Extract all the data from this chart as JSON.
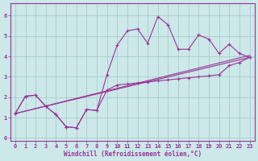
{
  "background_color": "#cce8e8",
  "grid_color": "#aacccc",
  "line_color": "#993399",
  "marker": "+",
  "markersize": 3.5,
  "linewidth": 0.8,
  "xlabel": "Windchill (Refroidissement éolien,°C)",
  "xlabel_fontsize": 5.5,
  "tick_color": "#993399",
  "tick_fontsize": 5.0,
  "xlim": [
    -0.5,
    23.5
  ],
  "ylim": [
    -0.15,
    6.6
  ],
  "xticks": [
    0,
    1,
    2,
    3,
    4,
    5,
    6,
    7,
    8,
    9,
    10,
    11,
    12,
    13,
    14,
    15,
    16,
    17,
    18,
    19,
    20,
    21,
    22,
    23
  ],
  "yticks": [
    0,
    1,
    2,
    3,
    4,
    5,
    6
  ],
  "line1_x": [
    0,
    1,
    2,
    3,
    4,
    5,
    6,
    7,
    8,
    9,
    10,
    11,
    12,
    13,
    14,
    15,
    16,
    17,
    18,
    19,
    20,
    21,
    22,
    23
  ],
  "line1_y": [
    1.2,
    2.05,
    2.1,
    1.55,
    1.15,
    0.55,
    0.5,
    1.4,
    1.35,
    3.1,
    4.55,
    5.25,
    5.35,
    4.65,
    5.95,
    5.55,
    4.35,
    4.35,
    5.05,
    4.85,
    4.15,
    4.6,
    4.15,
    3.95
  ],
  "line2_x": [
    0,
    1,
    2,
    3,
    4,
    5,
    6,
    7,
    8,
    9,
    10,
    11,
    12,
    13,
    14,
    15,
    16,
    17,
    18,
    19,
    20,
    21,
    22,
    23
  ],
  "line2_y": [
    1.2,
    2.05,
    2.1,
    1.55,
    1.15,
    0.55,
    0.5,
    1.4,
    1.35,
    2.35,
    2.6,
    2.65,
    2.7,
    2.75,
    2.8,
    2.85,
    2.9,
    2.95,
    3.0,
    3.05,
    3.1,
    3.55,
    3.7,
    3.95
  ],
  "line3_x": [
    0,
    23
  ],
  "line3_y": [
    1.2,
    3.95
  ],
  "line4_x": [
    0,
    23
  ],
  "line4_y": [
    1.2,
    4.05
  ]
}
